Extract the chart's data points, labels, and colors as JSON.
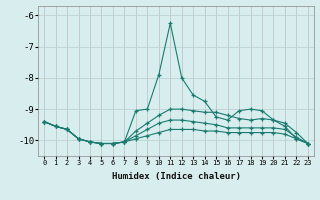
{
  "xlabel": "Humidex (Indice chaleur)",
  "x": [
    0,
    1,
    2,
    3,
    4,
    5,
    6,
    7,
    8,
    9,
    10,
    11,
    12,
    13,
    14,
    15,
    16,
    17,
    18,
    19,
    20,
    21,
    22,
    23
  ],
  "line1": [
    -9.4,
    -9.55,
    -9.65,
    -9.95,
    -10.05,
    -10.1,
    -10.1,
    -10.05,
    -9.05,
    -9.0,
    -7.9,
    -6.25,
    -8.0,
    -8.55,
    -8.75,
    -9.25,
    -9.35,
    -9.05,
    -9.0,
    -9.05,
    -9.35,
    -9.55,
    -9.95,
    -10.1
  ],
  "line2": [
    -9.4,
    -9.55,
    -9.65,
    -9.95,
    -10.05,
    -10.1,
    -10.1,
    -10.05,
    -9.7,
    -9.45,
    -9.2,
    -9.0,
    -9.0,
    -9.05,
    -9.1,
    -9.1,
    -9.2,
    -9.3,
    -9.35,
    -9.3,
    -9.35,
    -9.45,
    -9.75,
    -10.1
  ],
  "line3": [
    -9.4,
    -9.55,
    -9.65,
    -9.95,
    -10.05,
    -10.1,
    -10.1,
    -10.05,
    -9.85,
    -9.65,
    -9.45,
    -9.35,
    -9.35,
    -9.4,
    -9.45,
    -9.5,
    -9.6,
    -9.6,
    -9.6,
    -9.6,
    -9.6,
    -9.65,
    -9.9,
    -10.1
  ],
  "line4": [
    -9.4,
    -9.55,
    -9.65,
    -9.95,
    -10.05,
    -10.1,
    -10.1,
    -10.05,
    -9.95,
    -9.85,
    -9.75,
    -9.65,
    -9.65,
    -9.65,
    -9.7,
    -9.7,
    -9.75,
    -9.75,
    -9.75,
    -9.75,
    -9.75,
    -9.8,
    -9.95,
    -10.1
  ],
  "color": "#1a7a6e",
  "bg_color": "#d8eeee",
  "grid_color": "#c8dede",
  "ylim": [
    -10.5,
    -5.7
  ],
  "yticks": [
    -10,
    -9,
    -8,
    -7,
    -6
  ],
  "marker": "+",
  "markersize": 3,
  "linewidth": 0.8
}
